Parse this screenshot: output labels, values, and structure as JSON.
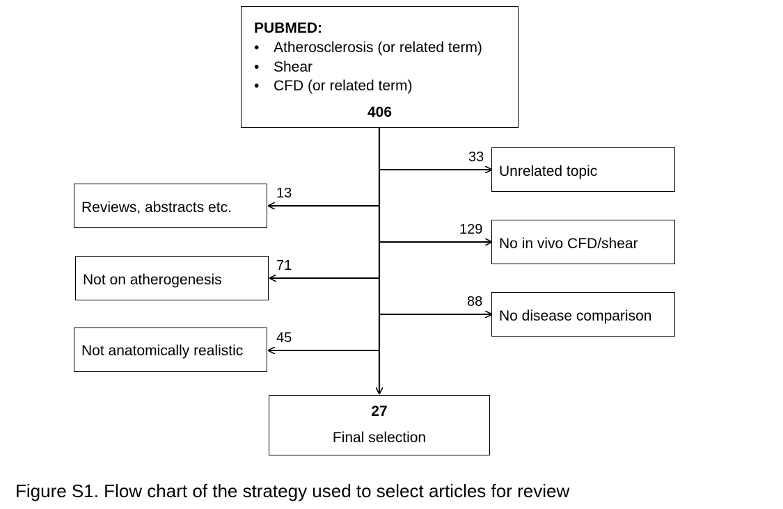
{
  "source": {
    "title": "PUBMED:",
    "items": [
      "Atherosclerosis (or related term)",
      "Shear",
      "CFD (or related term)"
    ],
    "bullet": "•",
    "count": "406"
  },
  "exclusions_right": [
    {
      "count": "33",
      "label": "Unrelated topic"
    },
    {
      "count": "129",
      "label": "No in vivo CFD/shear"
    },
    {
      "count": "88",
      "label": "No disease comparison"
    }
  ],
  "exclusions_left": [
    {
      "count": "13",
      "label": "Reviews, abstracts etc."
    },
    {
      "count": "71",
      "label": "Not on atherogenesis"
    },
    {
      "count": "45",
      "label": "Not anatomically realistic"
    }
  ],
  "final": {
    "count": "27",
    "label": "Final selection"
  },
  "caption": "Figure S1. Flow chart of the strategy used to select articles for review"
}
